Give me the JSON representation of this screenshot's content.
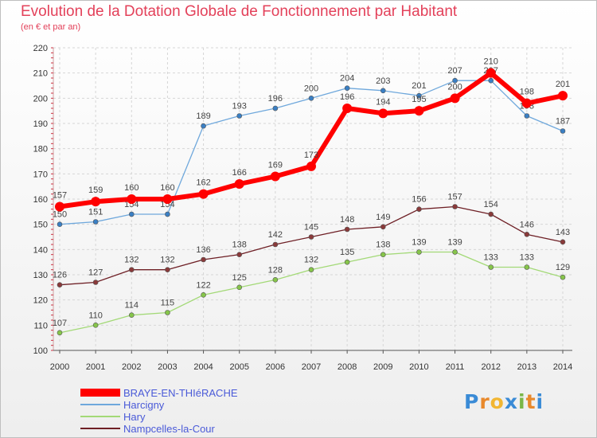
{
  "title": "Evolution de la Dotation Globale de Fonctionnement par Habitant",
  "subtitle": "(en € et par an)",
  "logo": {
    "text": "Proxiti",
    "letters": [
      "P",
      "r",
      "o",
      "x",
      "i",
      "t",
      "i"
    ],
    "colors": [
      "#3a8bd6",
      "#e8892c",
      "#f2b632",
      "#3a8bd6",
      "#7ab648",
      "#e8892c",
      "#3a8bd6"
    ]
  },
  "chart_data": {
    "type": "line",
    "title": "Evolution de la Dotation Globale de Fonctionnement par Habitant",
    "subtitle": "(en € et par an)",
    "xlabel": "",
    "ylabel": "",
    "ylim": [
      100,
      220
    ],
    "yticks": [
      100,
      110,
      120,
      130,
      140,
      150,
      160,
      170,
      180,
      190,
      200,
      210,
      220
    ],
    "x": [
      "2000",
      "2001",
      "2002",
      "2003",
      "2004",
      "2005",
      "2006",
      "2007",
      "2008",
      "2009",
      "2010",
      "2011",
      "2012",
      "2013",
      "2014"
    ],
    "legend_position": "bottom-left",
    "series": [
      {
        "name": "Nampcelles-la-Cour",
        "color": "#6e1f25",
        "marker": "#8a3a3a",
        "width": 1.3,
        "radius": 3,
        "label_pos": "above",
        "values": [
          126,
          127,
          132,
          132,
          136,
          138,
          142,
          145,
          148,
          149,
          156,
          157,
          154,
          146,
          143
        ]
      },
      {
        "name": "Hary",
        "color": "#a3d977",
        "marker": "#86c54a",
        "width": 1.3,
        "radius": 3,
        "label_pos": "above",
        "values": [
          107,
          110,
          114,
          115,
          122,
          125,
          128,
          132,
          135,
          138,
          139,
          139,
          133,
          133,
          129
        ]
      },
      {
        "name": "Harcigny",
        "color": "#6fa8dc",
        "marker": "#3a7fc4",
        "width": 1.3,
        "radius": 3,
        "label_pos": "above",
        "values": [
          150,
          151,
          154,
          154,
          189,
          193,
          196,
          200,
          204,
          203,
          201,
          207,
          207,
          193,
          187
        ]
      },
      {
        "name": "BRAYE-EN-THIéRACHE",
        "color": "#ff0000",
        "marker": "#ff0000",
        "width": 6,
        "radius": 6,
        "label_pos": "above",
        "values": [
          157,
          159,
          160,
          160,
          162,
          166,
          169,
          173,
          196,
          194,
          195,
          200,
          210,
          198,
          201
        ]
      }
    ],
    "legend_order": [
      "BRAYE-EN-THIéRACHE",
      "Harcigny",
      "Hary",
      "Nampcelles-la-Cour"
    ]
  }
}
